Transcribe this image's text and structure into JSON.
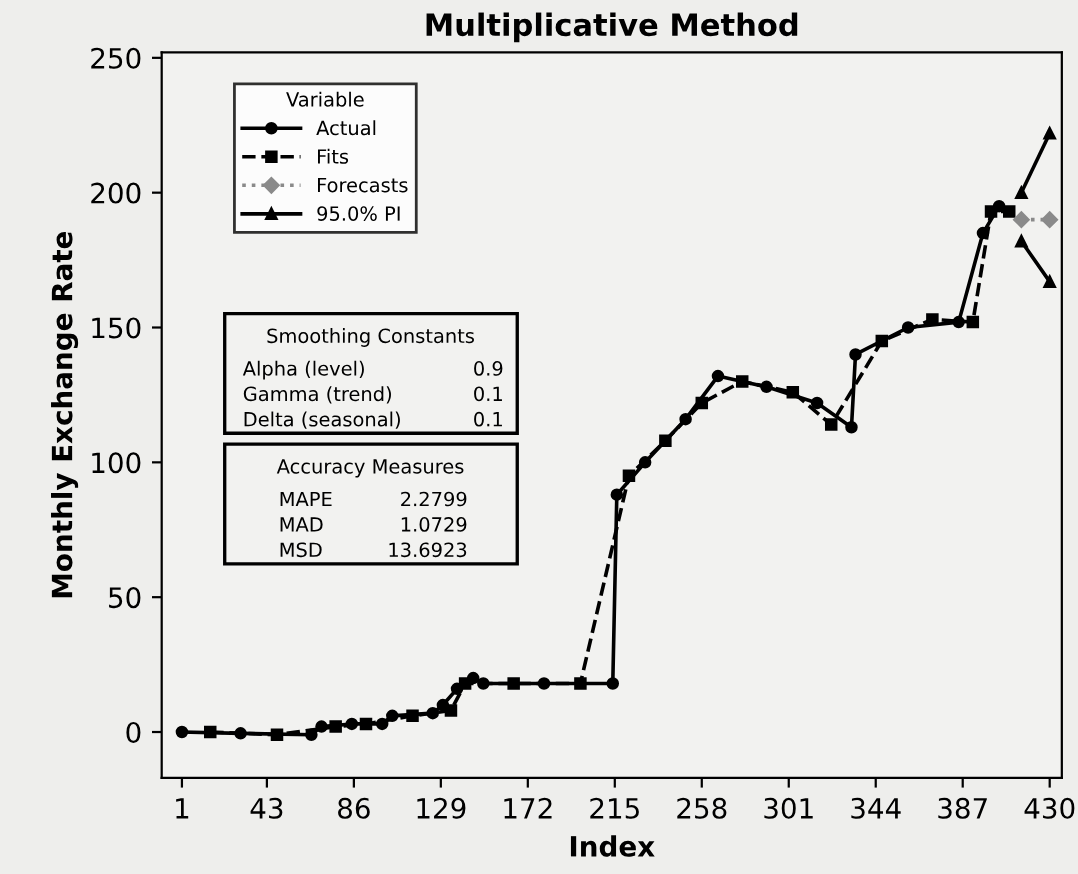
{
  "chart_data": {
    "type": "line",
    "title": "Multiplicative Method",
    "xlabel": "Index",
    "ylabel": "Monthly Exchange Rate",
    "legend_title": "Variable",
    "legend": "top left",
    "xlim": [
      -9,
      436
    ],
    "xticks": [
      1,
      43,
      86,
      129,
      172,
      215,
      258,
      301,
      344,
      387,
      430
    ],
    "ylim": [
      -17,
      252
    ],
    "yticks": [
      0,
      50,
      100,
      150,
      200,
      250
    ],
    "grid": false,
    "series": [
      {
        "name": "Actual",
        "color": "#000000",
        "marker": "circle",
        "line_style": "solid",
        "x": [
          1,
          30,
          65,
          70,
          85,
          100,
          105,
          125,
          130,
          137,
          145,
          150,
          180,
          214,
          216,
          230,
          250,
          266,
          290,
          315,
          332,
          334,
          360,
          385,
          397,
          405
        ],
        "values": [
          0,
          -0.5,
          -1,
          2,
          3,
          3,
          6,
          7,
          10,
          16,
          20,
          18,
          18,
          18,
          88,
          100,
          116,
          132,
          128,
          122,
          113,
          140,
          150,
          152,
          185,
          195
        ]
      },
      {
        "name": "Fits",
        "color": "#000000",
        "marker": "square",
        "line_style": "dashed",
        "x": [
          15,
          48,
          77,
          92,
          115,
          134,
          141,
          165,
          198,
          222,
          240,
          258,
          278,
          303,
          322,
          347,
          372,
          392,
          401,
          410
        ],
        "values": [
          0,
          -1,
          2,
          3,
          6,
          8,
          18,
          18,
          18,
          95,
          108,
          122,
          130,
          126,
          114,
          145,
          153,
          152,
          193,
          193
        ]
      },
      {
        "name": "Forecasts",
        "color": "#8a8a8a",
        "marker": "diamond",
        "line_style": "dotted",
        "x": [
          416,
          430
        ],
        "values": [
          190,
          190
        ]
      },
      {
        "name": "95.0% PI",
        "color": "#000000",
        "marker": "triangle",
        "line_style": "solid",
        "x": [
          416,
          430
        ],
        "values": [
          200,
          222
        ]
      },
      {
        "color": "#000000",
        "marker": "triangle",
        "line_style": "solid",
        "x": [
          416,
          430
        ],
        "values": [
          182,
          167
        ]
      }
    ],
    "annotations": [
      "Smoothing Constants",
      "Alpha (level)",
      "0.9",
      "Gamma (trend)",
      "0.1",
      "Delta (seasonal)",
      "0.1",
      "Accuracy Measures",
      "MAPE",
      "2.2799",
      "MAD",
      "1.0729",
      "MSD",
      "13.6923"
    ]
  }
}
